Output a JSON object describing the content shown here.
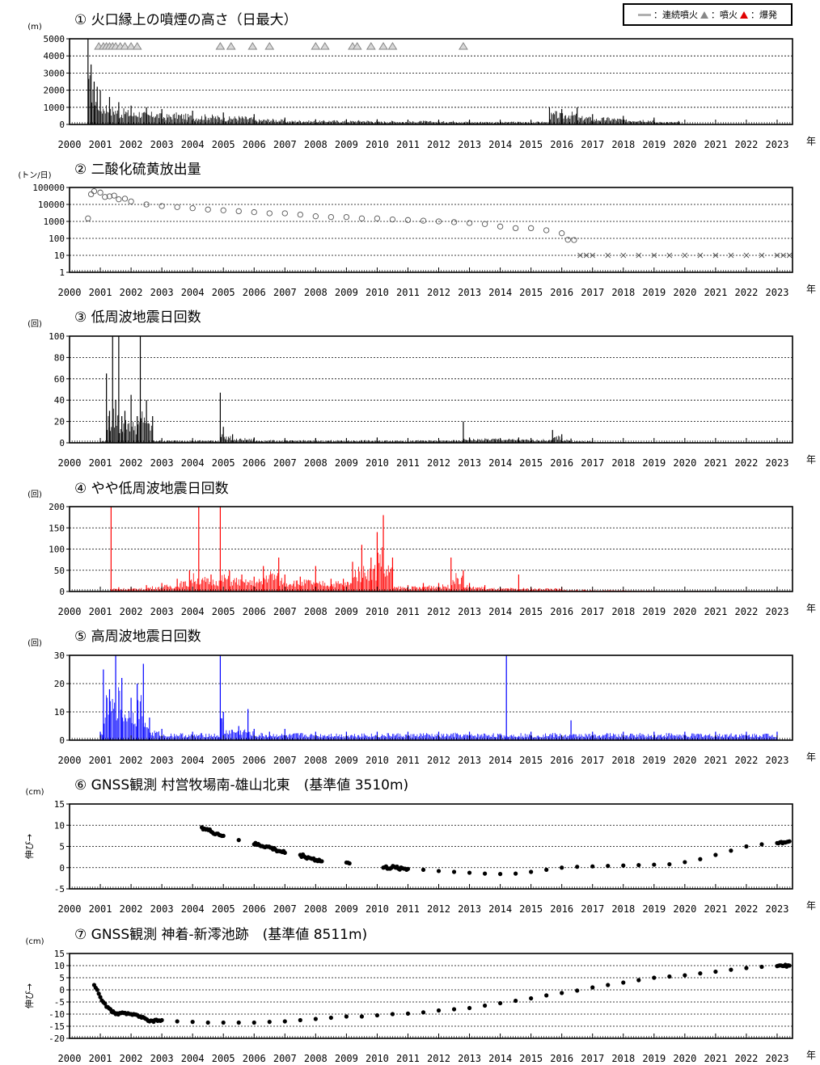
{
  "legend": {
    "continuous_label": "：連続噴火",
    "eruption_label": "：噴火",
    "explosion_label": "：爆発",
    "continuous_color": "#b0b0b0",
    "eruption_color": "#888888",
    "explosion_color": "#e00000"
  },
  "x_axis": {
    "ticks": [
      "2000",
      "2001",
      "2002",
      "2003",
      "2004",
      "2005",
      "2006",
      "2007",
      "2008",
      "2009",
      "2010",
      "2011",
      "2012",
      "2013",
      "2014",
      "2015",
      "2016",
      "2017",
      "2018",
      "2019",
      "2020",
      "2021",
      "2022",
      "2023"
    ],
    "unit_label": "年",
    "range": [
      2000.0,
      2023.5
    ]
  },
  "chart_data": [
    {
      "id": "p1",
      "type": "bar",
      "title": "① 火口縁上の噴煙の高さ（日最大）",
      "unit": "(m)",
      "ylim": [
        0,
        5000
      ],
      "yticks": [
        "0",
        "1000",
        "2000",
        "3000",
        "4000",
        "5000"
      ],
      "grid": true,
      "color": "#000000",
      "series": [
        {
          "x": [
            2000.6,
            2000.7,
            2000.8,
            2000.9,
            2001.0,
            2001.3,
            2001.6,
            2002.0,
            2002.5,
            2003.0,
            2004.0,
            2005.0,
            2006.0,
            2007.0,
            2008.0,
            2009.0,
            2010.0,
            2011.0,
            2012.0,
            2013.0,
            2014.0,
            2015.0,
            2015.6,
            2016.0,
            2016.5,
            2017.0,
            2018.0,
            2019.0,
            2019.8
          ],
          "y": [
            5000,
            3500,
            2500,
            2200,
            2000,
            1600,
            1300,
            1100,
            1000,
            900,
            800,
            700,
            600,
            400,
            300,
            300,
            300,
            250,
            250,
            250,
            200,
            200,
            1000,
            900,
            1000,
            600,
            500,
            400,
            200
          ]
        }
      ],
      "markers": {
        "type": "eruption",
        "x": [
          2000.95,
          2001.1,
          2001.2,
          2001.3,
          2001.4,
          2001.5,
          2001.65,
          2001.8,
          2002.0,
          2002.2,
          2004.9,
          2005.25,
          2005.95,
          2006.5,
          2008.0,
          2008.3,
          2009.2,
          2009.35,
          2009.8,
          2010.2,
          2010.5,
          2012.8
        ]
      }
    },
    {
      "id": "p2",
      "type": "scatter",
      "title": "② 二酸化硫黄放出量",
      "unit": "(トン/日)",
      "scale": "log",
      "ylim": [
        1,
        100000
      ],
      "yticks": [
        "1",
        "10",
        "100",
        "1000",
        "10000",
        "100000"
      ],
      "grid": true,
      "series": [
        {
          "name": "",
          "marker": "circle",
          "x": [
            2000.6,
            2000.7,
            2000.8,
            2001.0,
            2001.3,
            2001.6,
            2002.0,
            2002.5,
            2003.0,
            2003.5,
            2004.0,
            2004.5,
            2005.0,
            2005.5,
            2006.0,
            2006.5,
            2007.0,
            2007.5,
            2008.0,
            2008.5,
            2009.0,
            2009.5,
            2010.0,
            2010.5,
            2011.0,
            2011.5,
            2012.0,
            2012.5,
            2013.0,
            2013.5,
            2014.0,
            2014.5,
            2015.0,
            2015.5,
            2016.0,
            2016.4
          ],
          "y": [
            1500,
            40000,
            60000,
            50000,
            30000,
            20000,
            15000,
            10000,
            8000,
            7000,
            6000,
            5000,
            4500,
            4000,
            3500,
            3000,
            3000,
            2500,
            2000,
            1800,
            1800,
            1500,
            1500,
            1300,
            1200,
            1100,
            1000,
            900,
            800,
            700,
            500,
            400,
            400,
            300,
            200,
            80
          ]
        },
        {
          "name": "",
          "marker": "x",
          "x": [
            2016.6,
            2017.0,
            2017.5,
            2018.0,
            2018.5,
            2019.0,
            2019.5,
            2020.0,
            2020.5,
            2021.0,
            2021.5,
            2022.0,
            2022.5,
            2023.0,
            2023.4
          ],
          "y": [
            10,
            10,
            10,
            10,
            10,
            10,
            10,
            10,
            10,
            10,
            10,
            10,
            10,
            10,
            10
          ]
        }
      ]
    },
    {
      "id": "p3",
      "type": "bar",
      "title": "③ 低周波地震日回数",
      "unit": "(回)",
      "ylim": [
        0,
        100
      ],
      "yticks": [
        "0",
        "20",
        "40",
        "60",
        "80",
        "100"
      ],
      "grid": true,
      "color": "#000000",
      "series": [
        {
          "x": [
            2001.0,
            2001.2,
            2001.3,
            2001.4,
            2001.5,
            2001.6,
            2001.7,
            2001.8,
            2002.0,
            2002.2,
            2002.3,
            2002.5,
            2002.7,
            2003.0,
            2004.9,
            2005.0,
            2005.3,
            2006.0,
            2007.0,
            2008.0,
            2009.0,
            2010.0,
            2011.0,
            2012.0,
            2012.8,
            2013.0,
            2014.6,
            2015.0,
            2015.7,
            2016.0,
            2016.3,
            2017.0,
            2019.0,
            2020.0
          ],
          "y": [
            2,
            65,
            30,
            100,
            40,
            100,
            25,
            30,
            45,
            25,
            100,
            40,
            25,
            3,
            47,
            15,
            8,
            5,
            3,
            4,
            3,
            5,
            3,
            3,
            20,
            5,
            5,
            4,
            12,
            8,
            4,
            2,
            1,
            1
          ]
        }
      ]
    },
    {
      "id": "p4",
      "type": "bar",
      "title": "④ やや低周波地震日回数",
      "unit": "(回)",
      "ylim": [
        0,
        200
      ],
      "yticks": [
        "0",
        "50",
        "100",
        "150",
        "200"
      ],
      "grid": true,
      "color": "#ff0000",
      "series": [
        {
          "x": [
            2001.0,
            2001.35,
            2001.6,
            2002.0,
            2002.5,
            2003.0,
            2003.5,
            2003.9,
            2004.2,
            2004.6,
            2004.9,
            2005.2,
            2005.6,
            2006.0,
            2006.3,
            2006.8,
            2007.0,
            2007.5,
            2008.0,
            2008.5,
            2008.9,
            2009.2,
            2009.5,
            2009.8,
            2010.0,
            2010.2,
            2010.5,
            2011.0,
            2011.5,
            2012.0,
            2012.4,
            2012.8,
            2013.0,
            2013.5,
            2014.0,
            2014.6,
            2015.0,
            2016.0,
            2016.5,
            2017.0,
            2018.0,
            2019.0,
            2020.0,
            2021.0,
            2022.0,
            2023.0
          ],
          "y": [
            2,
            200,
            10,
            10,
            15,
            20,
            30,
            50,
            200,
            40,
            200,
            50,
            40,
            35,
            60,
            80,
            40,
            35,
            60,
            30,
            30,
            70,
            110,
            80,
            140,
            180,
            80,
            15,
            20,
            20,
            80,
            50,
            20,
            15,
            10,
            40,
            10,
            10,
            5,
            5,
            4,
            3,
            2,
            2,
            2,
            1
          ]
        }
      ]
    },
    {
      "id": "p5",
      "type": "bar",
      "title": "⑤ 高周波地震日回数",
      "unit": "(回)",
      "ylim": [
        0,
        30
      ],
      "yticks": [
        "0",
        "10",
        "20",
        "30"
      ],
      "grid": true,
      "color": "#0000ff",
      "series": [
        {
          "x": [
            2001.0,
            2001.1,
            2001.3,
            2001.5,
            2001.7,
            2002.0,
            2002.2,
            2002.4,
            2002.6,
            2003.0,
            2004.0,
            2004.9,
            2005.0,
            2005.5,
            2005.8,
            2006.0,
            2006.5,
            2007.0,
            2008.0,
            2009.0,
            2010.0,
            2011.0,
            2012.0,
            2013.0,
            2014.2,
            2015.0,
            2016.3,
            2017.0,
            2018.0,
            2019.0,
            2020.0,
            2021.0,
            2022.0,
            2023.0
          ],
          "y": [
            3,
            25,
            18,
            30,
            22,
            15,
            20,
            27,
            8,
            4,
            3,
            30,
            10,
            5,
            11,
            4,
            3,
            4,
            3,
            3,
            3,
            3,
            3,
            3,
            30,
            3,
            7,
            3,
            3,
            3,
            3,
            3,
            3,
            3
          ]
        }
      ]
    },
    {
      "id": "p6",
      "type": "scatter",
      "title": "⑥ GNSS観測 村営牧場南-雄山北東　(基準値 3510m)",
      "unit": "(cm)",
      "ylabel": "伸び→",
      "ylim": [
        -5,
        15
      ],
      "yticks": [
        "-5",
        "0",
        "5",
        "10",
        "15"
      ],
      "grid": true,
      "color": "#000000",
      "series": [
        {
          "x": [
            2004.3,
            2004.6,
            2005.0,
            2005.5,
            2006.0,
            2006.4,
            2006.7,
            2007.0,
            2007.5,
            2007.8,
            2008.2,
            2009.0,
            2009.1,
            2010.2,
            2010.6,
            2011.0,
            2011.5,
            2012.0,
            2012.5,
            2013.0,
            2013.5,
            2014.0,
            2014.5,
            2015.0,
            2015.5,
            2016.0,
            2016.5,
            2017.0,
            2017.5,
            2018.0,
            2018.5,
            2019.0,
            2019.5,
            2020.0,
            2020.5,
            2021.0,
            2021.5,
            2022.0,
            2022.5,
            2023.0,
            2023.4
          ],
          "y": [
            9.5,
            8.5,
            7.5,
            6.5,
            5.5,
            5.0,
            4.2,
            3.5,
            3.0,
            2.3,
            1.5,
            1.2,
            1.0,
            0.0,
            0.0,
            -0.3,
            -0.5,
            -0.8,
            -1.0,
            -1.2,
            -1.4,
            -1.5,
            -1.4,
            -1.0,
            -0.5,
            0.0,
            0.2,
            0.3,
            0.4,
            0.5,
            0.6,
            0.7,
            0.8,
            1.3,
            2.0,
            3.0,
            4.0,
            5.0,
            5.5,
            5.8,
            6.2
          ]
        }
      ]
    },
    {
      "id": "p7",
      "type": "scatter",
      "title": "⑦ GNSS観測 神着-新澪池跡　(基準値 8511m)",
      "unit": "(cm)",
      "ylabel": "伸び→",
      "ylim": [
        -20,
        15
      ],
      "yticks": [
        "-20",
        "-15",
        "-10",
        "-5",
        "0",
        "5",
        "10",
        "15"
      ],
      "grid": true,
      "color": "#000000",
      "series": [
        {
          "x": [
            2000.8,
            2000.9,
            2001.0,
            2001.2,
            2001.5,
            2001.8,
            2002.0,
            2002.3,
            2002.6,
            2003.0,
            2003.5,
            2004.0,
            2004.5,
            2005.0,
            2005.5,
            2006.0,
            2006.5,
            2007.0,
            2007.5,
            2008.0,
            2008.5,
            2009.0,
            2009.5,
            2010.0,
            2010.5,
            2011.0,
            2011.5,
            2012.0,
            2012.5,
            2013.0,
            2013.5,
            2014.0,
            2014.5,
            2015.0,
            2015.5,
            2016.0,
            2016.5,
            2017.0,
            2017.5,
            2018.0,
            2018.5,
            2019.0,
            2019.5,
            2020.0,
            2020.5,
            2021.0,
            2021.5,
            2022.0,
            2022.5,
            2023.0,
            2023.4
          ],
          "y": [
            2,
            0,
            -3,
            -7,
            -10,
            -9.5,
            -10,
            -11,
            -13,
            -12.5,
            -13,
            -13.2,
            -13.5,
            -13.5,
            -13.5,
            -13.5,
            -13.2,
            -13,
            -12.5,
            -12,
            -11.5,
            -11,
            -11,
            -10.5,
            -10,
            -9.8,
            -9.3,
            -8.5,
            -8,
            -7.5,
            -6.5,
            -5.5,
            -4.5,
            -3.5,
            -2.3,
            -1.3,
            -0.3,
            1.0,
            2.0,
            3.0,
            4.0,
            5.0,
            5.5,
            6.0,
            6.8,
            7.5,
            8.3,
            9.0,
            9.5,
            9.8,
            10.0
          ]
        }
      ]
    }
  ]
}
